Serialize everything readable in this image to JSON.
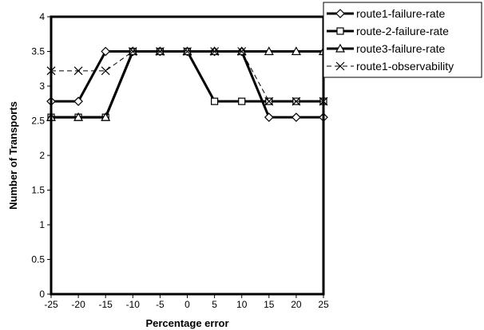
{
  "chart_data": {
    "type": "line",
    "xlabel": "Percentage error",
    "ylabel": "Number of Transports",
    "x": [
      -25,
      -20,
      -15,
      -10,
      -5,
      0,
      5,
      10,
      15,
      20,
      25
    ],
    "x_tick_labels": [
      "-25",
      "-20",
      "-15",
      "-10",
      "-5",
      "0",
      "5",
      "10",
      "15",
      "20",
      "25"
    ],
    "ylim": [
      0,
      4
    ],
    "y_ticks": [
      0,
      0.5,
      1,
      1.5,
      2,
      2.5,
      3,
      3.5,
      4
    ],
    "y_tick_labels": [
      "0",
      "0.5",
      "1",
      "1.5",
      "2",
      "2.5",
      "3",
      "3.5",
      "4"
    ],
    "grid": false,
    "legend_position": "top-right, outside plot",
    "series": [
      {
        "name": "route1-failure-rate",
        "marker": "diamond",
        "style": "thick-solid",
        "color": "#000000",
        "values": [
          2.78,
          2.78,
          3.5,
          3.5,
          3.5,
          3.5,
          3.5,
          3.5,
          2.55,
          2.55,
          2.55
        ]
      },
      {
        "name": "route-2-failure-rate",
        "marker": "square",
        "style": "thick-solid",
        "color": "#000000",
        "values": [
          2.55,
          2.55,
          2.55,
          3.5,
          3.5,
          3.5,
          2.78,
          2.78,
          2.78,
          2.78,
          2.78
        ]
      },
      {
        "name": "route3-failure-rate",
        "marker": "triangle",
        "style": "thick-solid",
        "color": "#000000",
        "values": [
          2.55,
          2.55,
          2.55,
          3.5,
          3.5,
          3.5,
          3.5,
          3.5,
          3.5,
          3.5,
          3.5
        ]
      },
      {
        "name": "route1-observability",
        "marker": "x",
        "style": "thin-dashed",
        "color": "#000000",
        "values": [
          3.22,
          3.22,
          3.22,
          3.5,
          3.5,
          3.5,
          3.5,
          3.5,
          2.78,
          2.78,
          2.78
        ]
      }
    ]
  }
}
